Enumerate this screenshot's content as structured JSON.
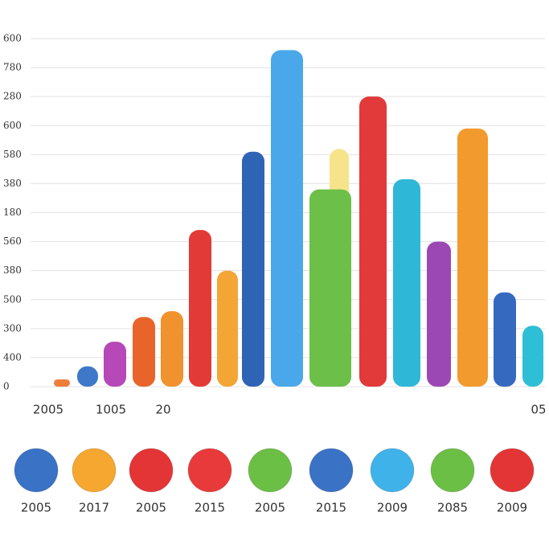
{
  "chart_data": {
    "type": "bar",
    "categories": [
      "2005",
      null,
      "1005",
      null,
      "20",
      null,
      null,
      null,
      null,
      null,
      null,
      null,
      null,
      null,
      null,
      null,
      "05"
    ],
    "values": [
      0.25,
      0.7,
      1.55,
      2.4,
      2.6,
      5.4,
      4.0,
      8.1,
      11.6,
      6.8,
      8.2,
      10.0,
      7.15,
      5.0,
      8.9,
      3.25,
      2.1
    ],
    "colors": [
      "#ef7d3a",
      "#3f78c8",
      "#b648b8",
      "#e8642a",
      "#f0922e",
      "#e23a36",
      "#f3a535",
      "#2f63b6",
      "#4aa8ea",
      "#6cc04a",
      "#f7e48a",
      "#e2393a",
      "#2fb7d8",
      "#9c48b4",
      "#f29a2e",
      "#3569c0",
      "#2ebfd6"
    ],
    "ylim": [
      0,
      12
    ],
    "yticks": [
      {
        "value": 0,
        "label": "0"
      },
      {
        "value": 1,
        "label": "400"
      },
      {
        "value": 2,
        "label": "300"
      },
      {
        "value": 3,
        "label": "500"
      },
      {
        "value": 4,
        "label": "380"
      },
      {
        "value": 5,
        "label": "560"
      },
      {
        "value": 6,
        "label": "180"
      },
      {
        "value": 7,
        "label": "380"
      },
      {
        "value": 8,
        "label": "580"
      },
      {
        "value": 9,
        "label": "600"
      },
      {
        "value": 10,
        "label": "280"
      },
      {
        "value": 11,
        "label": "780"
      },
      {
        "value": 12,
        "label": "600"
      }
    ],
    "grid": true,
    "legend": [
      {
        "label": "2005",
        "color": "#3a72c6"
      },
      {
        "label": "2017",
        "color": "#f6a730"
      },
      {
        "label": "2005",
        "color": "#e43536"
      },
      {
        "label": "2015",
        "color": "#e83a3a"
      },
      {
        "label": "2005",
        "color": "#6cbf45"
      },
      {
        "label": "2015",
        "color": "#3a72c6"
      },
      {
        "label": "2009",
        "color": "#3fb2ea"
      },
      {
        "label": "2085",
        "color": "#6cbf45"
      },
      {
        "label": "2009",
        "color": "#e43536"
      }
    ]
  }
}
